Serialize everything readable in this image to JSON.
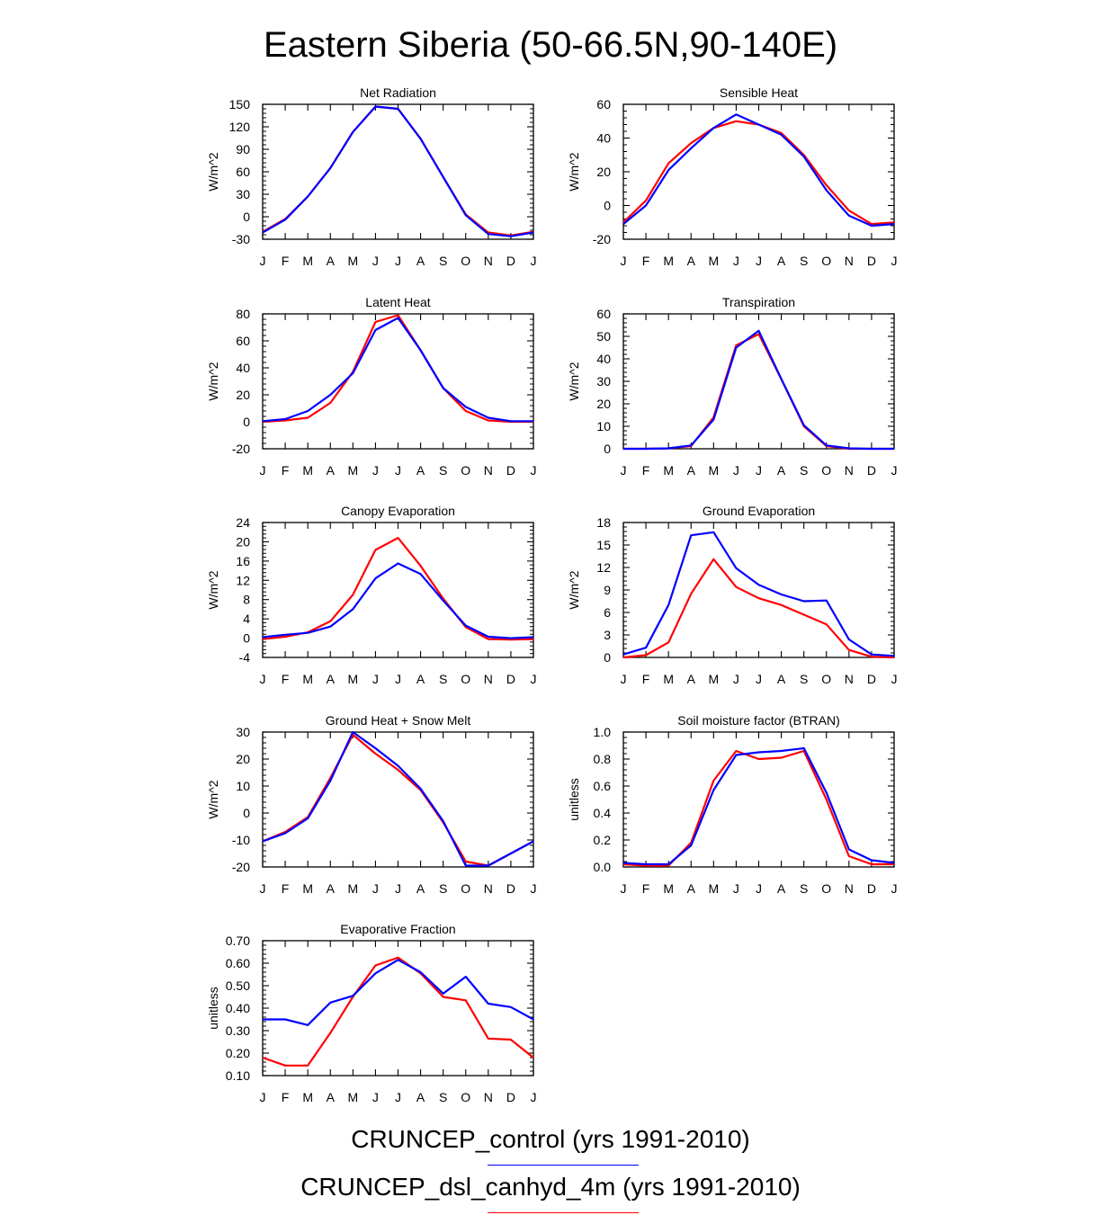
{
  "figure": {
    "title": "Eastern Siberia (50-66.5N,90-140E)",
    "legend": [
      {
        "label": "CRUNCEP_control (yrs 1991-2010)",
        "color": "#0000ff"
      },
      {
        "label": "CRUNCEP_dsl_canhyd_4m (yrs 1991-2010)",
        "color": "#ff0000"
      }
    ]
  },
  "chart_data": [
    {
      "type": "line",
      "title": "Net Radiation",
      "ylabel": "W/m^2",
      "ylim": [
        -30,
        150
      ],
      "yticks": [
        -30,
        0,
        30,
        60,
        90,
        120,
        150
      ],
      "ytick_labels": [
        "-30",
        "0",
        "30",
        "60",
        "90",
        "120",
        "150"
      ],
      "categories": [
        "J",
        "F",
        "M",
        "A",
        "M",
        "J",
        "J",
        "A",
        "S",
        "O",
        "N",
        "D",
        "J"
      ],
      "series": [
        {
          "name": "CRUNCEP_dsl_canhyd_4m",
          "color": "#ff0000",
          "values": [
            -20,
            -3,
            27,
            65,
            113,
            147,
            144,
            104,
            53,
            3,
            -21,
            -25,
            -20
          ]
        },
        {
          "name": "CRUNCEP_control",
          "color": "#0000ff",
          "values": [
            -21,
            -4,
            27,
            65,
            113,
            147,
            144,
            104,
            53,
            2,
            -23,
            -26,
            -21
          ]
        }
      ]
    },
    {
      "type": "line",
      "title": "Sensible Heat",
      "ylabel": "W/m^2",
      "ylim": [
        -20,
        60
      ],
      "yticks": [
        -20,
        0,
        20,
        40,
        60
      ],
      "ytick_labels": [
        "-20",
        "0",
        "20",
        "40",
        "60"
      ],
      "categories": [
        "J",
        "F",
        "M",
        "A",
        "M",
        "J",
        "J",
        "A",
        "S",
        "O",
        "N",
        "D",
        "J"
      ],
      "series": [
        {
          "name": "CRUNCEP_dsl_canhyd_4m",
          "color": "#ff0000",
          "values": [
            -10,
            3,
            25,
            37,
            46,
            50,
            48,
            43,
            30,
            12,
            -3,
            -11,
            -10
          ]
        },
        {
          "name": "CRUNCEP_control",
          "color": "#0000ff",
          "values": [
            -11,
            0,
            21,
            34,
            46,
            54,
            48,
            42,
            29,
            9,
            -6,
            -12,
            -11
          ]
        }
      ]
    },
    {
      "type": "line",
      "title": "Latent Heat",
      "ylabel": "W/m^2",
      "ylim": [
        -20,
        80
      ],
      "yticks": [
        -20,
        0,
        20,
        40,
        60,
        80
      ],
      "ytick_labels": [
        "-20",
        "0",
        "20",
        "40",
        "60",
        "80"
      ],
      "categories": [
        "J",
        "F",
        "M",
        "A",
        "M",
        "J",
        "J",
        "A",
        "S",
        "O",
        "N",
        "D",
        "J"
      ],
      "series": [
        {
          "name": "CRUNCEP_dsl_canhyd_4m",
          "color": "#ff0000",
          "values": [
            0,
            1,
            3,
            14,
            37,
            74,
            79,
            53,
            25,
            8,
            1,
            0,
            0
          ]
        },
        {
          "name": "CRUNCEP_control",
          "color": "#0000ff",
          "values": [
            0.5,
            2,
            8,
            20,
            36,
            68,
            77,
            53,
            25,
            11,
            3,
            0.5,
            0.5
          ]
        }
      ]
    },
    {
      "type": "line",
      "title": "Transpiration",
      "ylabel": "W/m^2",
      "ylim": [
        0,
        60
      ],
      "yticks": [
        0,
        10,
        20,
        30,
        40,
        50,
        60
      ],
      "ytick_labels": [
        "0",
        "10",
        "20",
        "30",
        "40",
        "50",
        "60"
      ],
      "categories": [
        "J",
        "F",
        "M",
        "A",
        "M",
        "J",
        "J",
        "A",
        "S",
        "O",
        "N",
        "D",
        "J"
      ],
      "series": [
        {
          "name": "CRUNCEP_dsl_canhyd_4m",
          "color": "#ff0000",
          "values": [
            0,
            0,
            0.2,
            1.2,
            14,
            46,
            51,
            31,
            10,
            1.2,
            0,
            0,
            0
          ]
        },
        {
          "name": "CRUNCEP_control",
          "color": "#0000ff",
          "values": [
            0,
            0,
            0.2,
            1.5,
            13,
            45,
            52.5,
            31,
            10.5,
            1.5,
            0.2,
            0,
            0
          ]
        }
      ]
    },
    {
      "type": "line",
      "title": "Canopy Evaporation",
      "ylabel": "W/m^2",
      "ylim": [
        -4,
        24
      ],
      "yticks": [
        -4,
        0,
        4,
        8,
        12,
        16,
        20,
        24
      ],
      "ytick_labels": [
        "-4",
        "0",
        "4",
        "8",
        "12",
        "16",
        "20",
        "24"
      ],
      "categories": [
        "J",
        "F",
        "M",
        "A",
        "M",
        "J",
        "J",
        "A",
        "S",
        "O",
        "N",
        "D",
        "J"
      ],
      "series": [
        {
          "name": "CRUNCEP_dsl_canhyd_4m",
          "color": "#ff0000",
          "values": [
            -0.2,
            0.3,
            1.2,
            3.5,
            9,
            18.3,
            20.8,
            15,
            8.2,
            2.3,
            -0.2,
            -0.3,
            -0.2
          ]
        },
        {
          "name": "CRUNCEP_control",
          "color": "#0000ff",
          "values": [
            0.2,
            0.7,
            1.1,
            2.4,
            6,
            12.4,
            15.5,
            13.3,
            7.8,
            2.6,
            0.3,
            0,
            0.2
          ]
        }
      ]
    },
    {
      "type": "line",
      "title": "Ground Evaporation",
      "ylabel": "W/m^2",
      "ylim": [
        0,
        18
      ],
      "yticks": [
        0,
        3,
        6,
        9,
        12,
        15,
        18
      ],
      "ytick_labels": [
        "0",
        "3",
        "6",
        "9",
        "12",
        "15",
        "18"
      ],
      "categories": [
        "J",
        "F",
        "M",
        "A",
        "M",
        "J",
        "J",
        "A",
        "S",
        "O",
        "N",
        "D",
        "J"
      ],
      "series": [
        {
          "name": "CRUNCEP_dsl_canhyd_4m",
          "color": "#ff0000",
          "values": [
            0,
            0.3,
            2,
            8.5,
            13.1,
            9.4,
            7.9,
            7,
            5.7,
            4.4,
            1,
            0.1,
            0
          ]
        },
        {
          "name": "CRUNCEP_control",
          "color": "#0000ff",
          "values": [
            0.4,
            1.3,
            7,
            16.3,
            16.7,
            11.9,
            9.7,
            8.4,
            7.5,
            7.6,
            2.4,
            0.4,
            0.2
          ]
        }
      ]
    },
    {
      "type": "line",
      "title": "Ground Heat + Snow Melt",
      "ylabel": "W/m^2",
      "ylim": [
        -20,
        30
      ],
      "yticks": [
        -20,
        -10,
        0,
        10,
        20,
        30
      ],
      "ytick_labels": [
        "-20",
        "-10",
        "0",
        "10",
        "20",
        "30"
      ],
      "categories": [
        "J",
        "F",
        "M",
        "A",
        "M",
        "J",
        "J",
        "A",
        "S",
        "O",
        "N",
        "D",
        "J"
      ],
      "series": [
        {
          "name": "CRUNCEP_dsl_canhyd_4m",
          "color": "#ff0000",
          "values": [
            -10.5,
            -7,
            -1.5,
            13,
            29,
            22,
            16,
            8.5,
            -3.5,
            -18,
            -19.5,
            -15,
            -10.5
          ]
        },
        {
          "name": "CRUNCEP_control",
          "color": "#0000ff",
          "values": [
            -10.5,
            -7.5,
            -2,
            12,
            30,
            24,
            17.5,
            9,
            -3,
            -19.5,
            -19.5,
            -15,
            -10.5
          ]
        }
      ]
    },
    {
      "type": "line",
      "title": "Soil moisture factor (BTRAN)",
      "ylabel": "unitless",
      "ylim": [
        0,
        1
      ],
      "yticks": [
        0,
        0.2,
        0.4,
        0.6,
        0.8,
        1.0
      ],
      "ytick_labels": [
        "0.0",
        "0.2",
        "0.4",
        "0.6",
        "0.8",
        "1.0"
      ],
      "categories": [
        "J",
        "F",
        "M",
        "A",
        "M",
        "J",
        "J",
        "A",
        "S",
        "O",
        "N",
        "D",
        "J"
      ],
      "series": [
        {
          "name": "CRUNCEP_dsl_canhyd_4m",
          "color": "#ff0000",
          "values": [
            0.02,
            0.01,
            0.01,
            0.18,
            0.64,
            0.86,
            0.8,
            0.81,
            0.86,
            0.5,
            0.08,
            0.02,
            0.02
          ]
        },
        {
          "name": "CRUNCEP_control",
          "color": "#0000ff",
          "values": [
            0.03,
            0.02,
            0.02,
            0.16,
            0.57,
            0.83,
            0.85,
            0.86,
            0.88,
            0.55,
            0.13,
            0.05,
            0.03
          ]
        }
      ]
    },
    {
      "type": "line",
      "title": "Evaporative Fraction",
      "ylabel": "unitless",
      "ylim": [
        0.1,
        0.7
      ],
      "yticks": [
        0.1,
        0.2,
        0.3,
        0.4,
        0.5,
        0.6,
        0.7
      ],
      "ytick_labels": [
        "0.10",
        "0.20",
        "0.30",
        "0.40",
        "0.50",
        "0.60",
        "0.70"
      ],
      "categories": [
        "J",
        "F",
        "M",
        "A",
        "M",
        "J",
        "J",
        "A",
        "S",
        "O",
        "N",
        "D",
        "J"
      ],
      "series": [
        {
          "name": "CRUNCEP_dsl_canhyd_4m",
          "color": "#ff0000",
          "values": [
            0.18,
            0.145,
            0.145,
            0.29,
            0.45,
            0.59,
            0.625,
            0.555,
            0.45,
            0.435,
            0.265,
            0.26,
            0.18
          ]
        },
        {
          "name": "CRUNCEP_control",
          "color": "#0000ff",
          "values": [
            0.35,
            0.35,
            0.325,
            0.425,
            0.455,
            0.555,
            0.615,
            0.56,
            0.465,
            0.54,
            0.42,
            0.405,
            0.35
          ]
        }
      ]
    }
  ]
}
